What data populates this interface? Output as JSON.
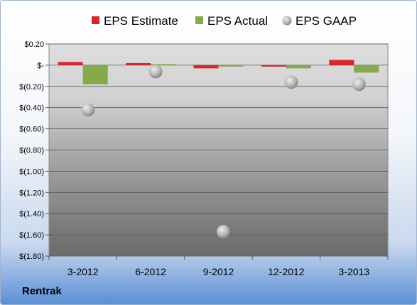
{
  "company_label": "Rentrak",
  "colors": {
    "estimate": "#d9262b",
    "actual": "#86a94a",
    "gaap": "#b8bcc2"
  },
  "chart_data": {
    "type": "bar",
    "categories": [
      "3-2012",
      "6-2012",
      "9-2012",
      "12-2012",
      "3-2013"
    ],
    "series": [
      {
        "name": "EPS Estimate",
        "kind": "bar",
        "values": [
          0.03,
          0.02,
          -0.03,
          -0.01,
          0.05
        ]
      },
      {
        "name": "EPS Actual",
        "kind": "bar",
        "values": [
          -0.18,
          0.01,
          -0.01,
          -0.03,
          -0.07
        ]
      },
      {
        "name": "EPS GAAP",
        "kind": "scatter",
        "values": [
          -0.42,
          -0.06,
          -1.57,
          -0.16,
          -0.18
        ]
      }
    ],
    "ylim": [
      -1.8,
      0.2
    ],
    "yticks": [
      0.2,
      0,
      -0.2,
      -0.4,
      -0.6,
      -0.8,
      -1.0,
      -1.2,
      -1.4,
      -1.6,
      -1.8
    ],
    "ytick_labels": [
      "$0.20",
      "$-",
      "$(0.20)",
      "$(0.40)",
      "$(0.60)",
      "$(0.80)",
      "$(1.00)",
      "$(1.20)",
      "$(1.40)",
      "$(1.60)",
      "$(1.80)"
    ],
    "grid": true,
    "legend_position": "top"
  }
}
